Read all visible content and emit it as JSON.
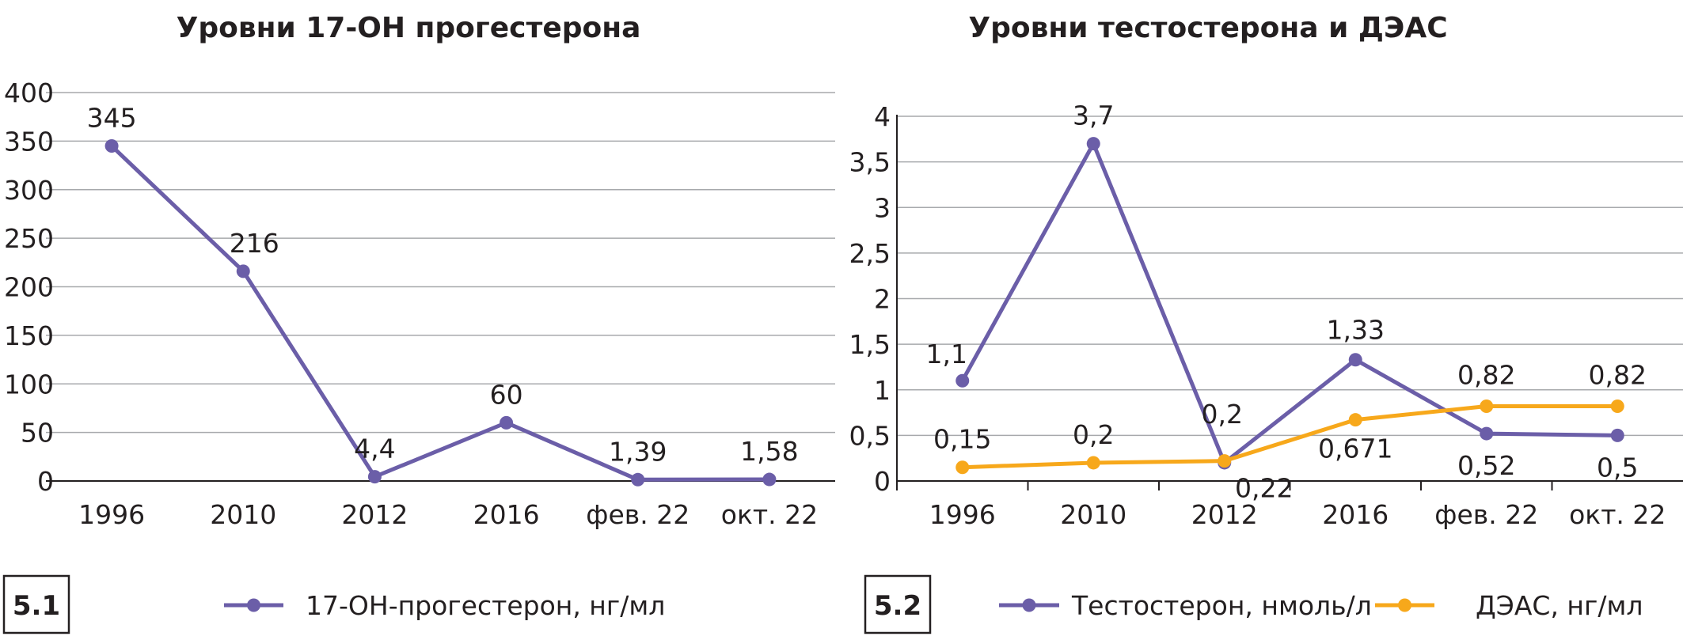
{
  "chart_data": [
    {
      "type": "line",
      "title": "Уровни 17-ОН прогестерона",
      "badge": "5.1",
      "categories": [
        "1996",
        "2010",
        "2012",
        "2016",
        "фев. 22",
        "окт. 22"
      ],
      "ylim": [
        0,
        400
      ],
      "y_ticks": [
        "0",
        "50",
        "100",
        "150",
        "200",
        "250",
        "300",
        "350",
        "400"
      ],
      "grid": true,
      "legend_position": "bottom",
      "series": [
        {
          "name": "17-ОН-прогестерон, нг/мл",
          "color": "#6b5ea8",
          "values": [
            345,
            216,
            4.4,
            60,
            1.39,
            1.58
          ],
          "labels": [
            "345",
            "216",
            "4,4",
            "60",
            "1,39",
            "1,58"
          ]
        }
      ]
    },
    {
      "type": "line",
      "title": "Уровни тестостерона и ДЭАС",
      "badge": "5.2",
      "categories": [
        "1996",
        "2010",
        "2012",
        "2016",
        "фев. 22",
        "окт. 22"
      ],
      "ylim": [
        0,
        4
      ],
      "y_ticks": [
        "0",
        "0,5",
        "1",
        "1,5",
        "2",
        "2,5",
        "3",
        "3,5",
        "4"
      ],
      "grid": true,
      "legend_position": "bottom",
      "series": [
        {
          "name": "Тестостерон, нмоль/л",
          "color": "#6b5ea8",
          "values": [
            1.1,
            3.7,
            0.2,
            1.33,
            0.52,
            0.5
          ],
          "labels": [
            "1,1",
            "3,7",
            "0,2",
            "1,33",
            "0,52",
            "0,5"
          ]
        },
        {
          "name": "ДЭАС, нг/мл",
          "color": "#f7a81b",
          "values": [
            0.15,
            0.2,
            0.22,
            0.671,
            0.82,
            0.82
          ],
          "labels": [
            "0,15",
            "0,2",
            "0,22",
            "0,671",
            "0,82",
            "0,82"
          ]
        }
      ]
    }
  ]
}
